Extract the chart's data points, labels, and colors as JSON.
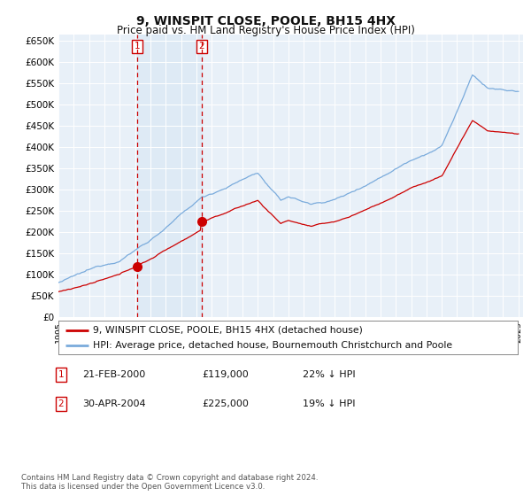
{
  "title": "9, WINSPIT CLOSE, POOLE, BH15 4HX",
  "subtitle": "Price paid vs. HM Land Registry's House Price Index (HPI)",
  "ylabel_ticks": [
    "£0",
    "£50K",
    "£100K",
    "£150K",
    "£200K",
    "£250K",
    "£300K",
    "£350K",
    "£400K",
    "£450K",
    "£500K",
    "£550K",
    "£600K",
    "£650K"
  ],
  "ytick_values": [
    0,
    50000,
    100000,
    150000,
    200000,
    250000,
    300000,
    350000,
    400000,
    450000,
    500000,
    550000,
    600000,
    650000
  ],
  "ylim": [
    0,
    665000
  ],
  "xlim_start": 1995.0,
  "xlim_end": 2025.3,
  "sale1_year": 2000.12,
  "sale1_price": 119000,
  "sale2_year": 2004.33,
  "sale2_price": 225000,
  "legend_line1": "9, WINSPIT CLOSE, POOLE, BH15 4HX (detached house)",
  "legend_line2": "HPI: Average price, detached house, Bournemouth Christchurch and Poole",
  "footnote1": "Contains HM Land Registry data © Crown copyright and database right 2024.",
  "footnote2": "This data is licensed under the Open Government Licence v3.0.",
  "hpi_color": "#7aabdc",
  "hpi_fill": "#dae8f5",
  "sale_color": "#cc0000",
  "vline_color": "#cc0000",
  "bg_color": "#ffffff",
  "grid_color": "#cccccc",
  "plot_bg": "#e8f0f8"
}
